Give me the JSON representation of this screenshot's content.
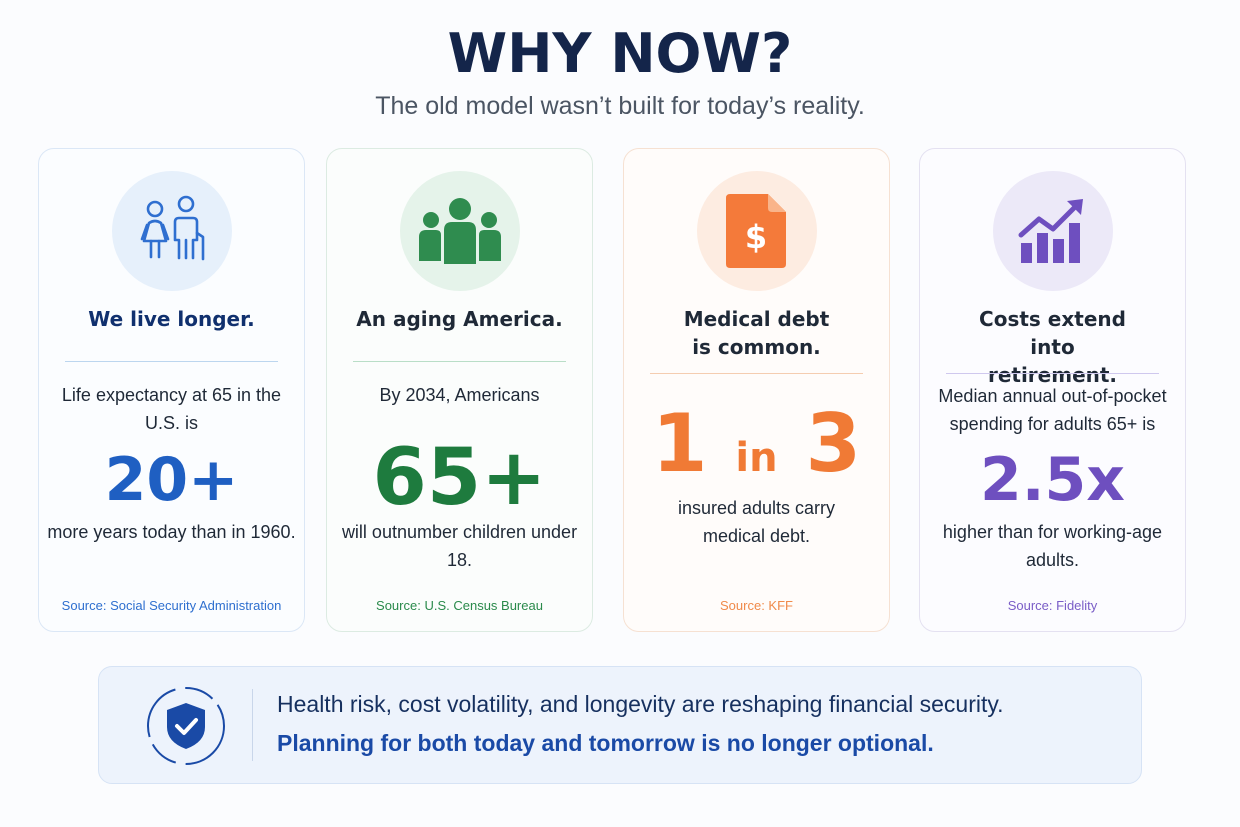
{
  "header": {
    "title": "WHY NOW?",
    "subtitle": "The old model wasn’t built for today’s reality."
  },
  "cards": [
    {
      "icon": "elderly-couple-icon",
      "title": "We live longer.",
      "lead": "Life expectancy at 65 in the U.S. is",
      "stat": "20+",
      "follow": "more years today than in 1960.",
      "source": "Source: Social Security Administration",
      "accent": "#1f5fc2"
    },
    {
      "icon": "people-group-icon",
      "title": "An aging America.",
      "lead": "By 2034, Americans",
      "stat": "65+",
      "follow": "will outnumber children under 18.",
      "source": "Source: U.S. Census Bureau",
      "accent": "#1e7b3e"
    },
    {
      "icon": "medical-bill-dollar-icon",
      "title": "Medical debt is common.",
      "stat_big_1": "1",
      "stat_small": "in",
      "stat_big_2": "3",
      "follow": "insured adults carry medical debt.",
      "source": "Source: KFF",
      "accent": "#f07a35"
    },
    {
      "icon": "rising-bar-chart-icon",
      "title": "Costs extend into retirement.",
      "lead": "Median annual out-of-pocket spending for adults 65+ is",
      "stat": "2.5x",
      "follow": "higher than for working-age adults.",
      "source": "Source: Fidelity",
      "accent": "#6e4fbf"
    }
  ],
  "banner": {
    "icon": "shield-check-icon",
    "line1": "Health risk, cost volatility, and longevity are reshaping financial security.",
    "line2": "Planning for both today and tomorrow is no longer optional."
  }
}
